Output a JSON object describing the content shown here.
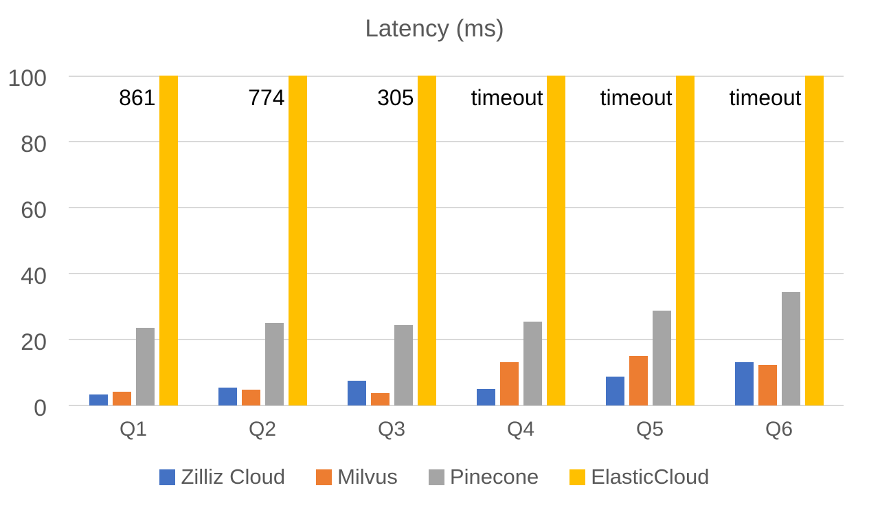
{
  "chart_data": {
    "type": "bar",
    "title": "Latency (ms)",
    "xlabel": "",
    "ylabel": "",
    "categories": [
      "Q1",
      "Q2",
      "Q3",
      "Q4",
      "Q5",
      "Q6"
    ],
    "series": [
      {
        "name": "Zilliz Cloud",
        "color": "#4472C4",
        "values": [
          3.3,
          5.4,
          7.6,
          5.1,
          8.7,
          13.2
        ]
      },
      {
        "name": "Milvus",
        "color": "#ED7D31",
        "values": [
          4.1,
          4.7,
          3.8,
          13.2,
          15.1,
          12.2
        ]
      },
      {
        "name": "Pinecone",
        "color": "#A5A5A5",
        "values": [
          23.5,
          24.9,
          24.3,
          25.5,
          28.8,
          34.3
        ]
      },
      {
        "name": "ElasticCloud",
        "color": "#FFC000",
        "values": [
          100,
          100,
          100,
          100,
          100,
          100
        ],
        "clipped_at_ymax": true,
        "bar_labels": [
          "861",
          "774",
          "305",
          "timeout",
          "timeout",
          "timeout"
        ]
      }
    ],
    "ylim": [
      0,
      100
    ],
    "yticks": [
      0,
      20,
      40,
      60,
      80,
      100
    ],
    "grid": true,
    "legend_position": "bottom",
    "colors": {
      "title_text": "#595959",
      "axis_label_text": "#595959",
      "legend_text": "#595959",
      "bar_value_label_text": "#000000",
      "gridline": "#D9D9D9",
      "background": "#FFFFFF"
    }
  }
}
